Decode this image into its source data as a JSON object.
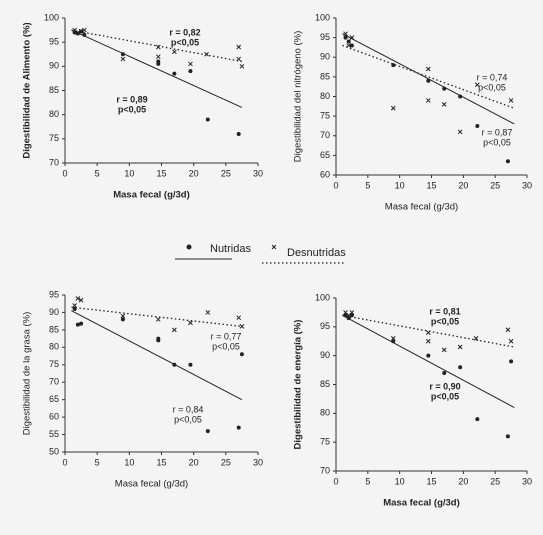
{
  "chart_data": [
    {
      "type": "scatter",
      "ylabel": "Digestibilidad de Alimento (%)",
      "xlabel": "Masa fecal (g/3d)",
      "bold": true,
      "xlim": [
        0,
        30
      ],
      "xticks": [
        0,
        5,
        10,
        15,
        20,
        25,
        30
      ],
      "ylim": [
        70,
        100
      ],
      "yticks": [
        70,
        75,
        80,
        85,
        90,
        95,
        100
      ],
      "annotations": [
        [
          "r = 0,82",
          "p<0,05"
        ],
        [
          "r = 0,89",
          "p<0,05"
        ]
      ],
      "series": [
        {
          "name": "Nutridas",
          "marker": "dot",
          "color": "#222",
          "x": [
            1.5,
            2,
            2.5,
            3,
            9,
            14.5,
            14.5,
            17,
            19.5,
            22.2,
            27
          ],
          "values": [
            97,
            96.8,
            97.2,
            96.5,
            92.5,
            91,
            90.5,
            88.5,
            89,
            79,
            76
          ],
          "trend": {
            "x": [
              1,
              27.5
            ],
            "values": [
              97.5,
              81.5
            ],
            "style": "solid"
          }
        },
        {
          "name": "Desnutridas",
          "marker": "x",
          "color": "#222",
          "x": [
            1.5,
            2,
            2.5,
            3,
            9,
            14.5,
            14.5,
            17,
            19.5,
            22,
            27,
            27,
            27.5
          ],
          "values": [
            97.5,
            97,
            97.3,
            97.5,
            91.5,
            92,
            94,
            93,
            90.5,
            92.5,
            94,
            91.5,
            90
          ],
          "trend": {
            "x": [
              1,
              27.5
            ],
            "values": [
              97.5,
              91
            ],
            "style": "dotted"
          }
        }
      ]
    },
    {
      "type": "scatter",
      "ylabel": "Digestibilidad del nitrógeno (%)",
      "xlabel": "Masa fecal (g/3d)",
      "bold": false,
      "xlim": [
        0,
        30
      ],
      "xticks": [
        0,
        5,
        10,
        15,
        20,
        25,
        30
      ],
      "ylim": [
        60,
        100
      ],
      "yticks": [
        60,
        65,
        70,
        75,
        80,
        85,
        90,
        95,
        100
      ],
      "annotations": [
        [
          "r = 0,74",
          "p<0,05"
        ],
        [
          "r = 0,87",
          "p<0,05"
        ]
      ],
      "series": [
        {
          "marker": "dot",
          "color": "#222",
          "x": [
            1.5,
            2,
            2.5,
            9,
            14.5,
            17,
            19.5,
            22.2,
            27
          ],
          "values": [
            95,
            94,
            93,
            88,
            84,
            82,
            80,
            72.5,
            63.5
          ],
          "trend": {
            "x": [
              1,
              28
            ],
            "values": [
              96,
              73
            ],
            "style": "solid"
          }
        },
        {
          "marker": "x",
          "color": "#222",
          "x": [
            1.5,
            2,
            2.5,
            9,
            14.5,
            14.5,
            17,
            19.5,
            22.2,
            27.5
          ],
          "values": [
            96,
            93,
            95,
            77,
            87,
            79,
            78,
            71,
            83,
            79
          ],
          "trend": {
            "x": [
              1,
              28
            ],
            "values": [
              93,
              77
            ],
            "style": "dotted"
          }
        }
      ]
    },
    {
      "type": "scatter",
      "ylabel": "Digestibilidad de la grasa (%)",
      "xlabel": "Masa fecal (g/3d)",
      "bold": false,
      "xlim": [
        0,
        30
      ],
      "xticks": [
        0,
        5,
        10,
        15,
        20,
        25,
        30
      ],
      "ylim": [
        50,
        95
      ],
      "yticks": [
        50,
        55,
        60,
        65,
        70,
        75,
        80,
        85,
        90,
        95
      ],
      "annotations": [
        [
          "r = 0,77",
          "p<0,05"
        ],
        [
          "r = 0,84",
          "p<0,05"
        ]
      ],
      "series": [
        {
          "marker": "dot",
          "color": "#222",
          "x": [
            1.5,
            2,
            2.5,
            9,
            14.5,
            14.5,
            17,
            19.5,
            22.2,
            27,
            27.5
          ],
          "values": [
            91,
            86.5,
            86.8,
            88,
            82.5,
            82,
            75,
            75,
            56,
            57,
            78
          ],
          "trend": {
            "x": [
              1,
              27.5
            ],
            "values": [
              90.5,
              65
            ],
            "style": "solid"
          }
        },
        {
          "marker": "x",
          "color": "#222",
          "x": [
            1.5,
            2,
            2.5,
            9,
            14.5,
            17,
            19.5,
            22.2,
            27,
            27.5
          ],
          "values": [
            92,
            94,
            93.5,
            89,
            88,
            85,
            87,
            90,
            88.5,
            86
          ],
          "trend": {
            "x": [
              1,
              27.5
            ],
            "values": [
              91.5,
              86
            ],
            "style": "dotted"
          }
        }
      ]
    },
    {
      "type": "scatter",
      "ylabel": "Digestibilidad de energía (%)",
      "xlabel": "Masa fecal (g/3d)",
      "bold": true,
      "xlim": [
        0,
        30
      ],
      "xticks": [
        0,
        5,
        10,
        15,
        20,
        25,
        30
      ],
      "ylim": [
        70,
        100
      ],
      "yticks": [
        70,
        75,
        80,
        85,
        90,
        95,
        100
      ],
      "annotations": [
        [
          "r = 0,81",
          "p<0,05"
        ],
        [
          "r = 0,90",
          "p<0,05"
        ]
      ],
      "series": [
        {
          "marker": "dot",
          "color": "#222",
          "x": [
            1.5,
            2,
            2.5,
            9,
            14.5,
            17,
            19.5,
            22.2,
            27,
            27.5
          ],
          "values": [
            97,
            96.5,
            97,
            92.5,
            90,
            87,
            88,
            79,
            76,
            89
          ],
          "trend": {
            "x": [
              1,
              28
            ],
            "values": [
              97,
              81
            ],
            "style": "solid"
          }
        },
        {
          "marker": "x",
          "color": "#222",
          "x": [
            1.5,
            2,
            2.5,
            9,
            14.5,
            14.5,
            17,
            19.5,
            22,
            27,
            27.5
          ],
          "values": [
            97.5,
            97,
            97.5,
            93,
            92.5,
            94,
            91,
            91.5,
            93,
            94.5,
            92.5
          ],
          "trend": {
            "x": [
              1,
              28
            ],
            "values": [
              97,
              91.5
            ],
            "style": "dotted"
          }
        }
      ]
    }
  ]
}
